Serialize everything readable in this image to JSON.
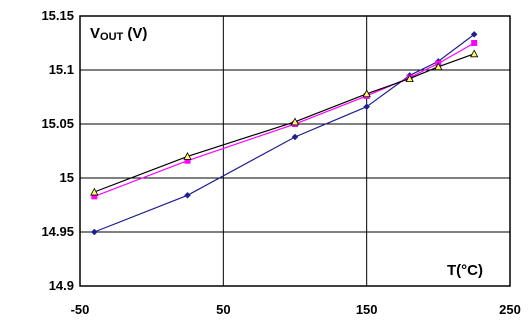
{
  "chart_data": {
    "type": "line",
    "ylabel_main": "V",
    "ylabel_sub": "OUT",
    "ylabel_unit": " (V)",
    "xlabel": "T(°C)",
    "xlim": [
      -50,
      250
    ],
    "ylim": [
      14.9,
      15.15
    ],
    "xticks": [
      -50,
      50,
      150,
      250
    ],
    "yticks": [
      14.9,
      14.95,
      15,
      15.05,
      15.1,
      15.15
    ],
    "xtick_labels": [
      "-50",
      "50",
      "150",
      "250"
    ],
    "ytick_labels": [
      "14.9",
      "14.95",
      "15",
      "15.05",
      "15.1",
      "15.15"
    ],
    "grid": true,
    "legend": "none",
    "series": [
      {
        "color": "#1f1f8f",
        "marker": "diamond",
        "x": [
          -40,
          25,
          100,
          150,
          180,
          200,
          225
        ],
        "y": [
          14.95,
          14.984,
          15.038,
          15.066,
          15.095,
          15.108,
          15.133
        ]
      },
      {
        "color": "#ff00ff",
        "marker": "square",
        "x": [
          -40,
          25,
          100,
          150,
          180,
          200,
          225
        ],
        "y": [
          14.983,
          15.016,
          15.05,
          15.076,
          15.093,
          15.106,
          15.125
        ]
      },
      {
        "color": "#000000",
        "marker": "triangle",
        "markerFill": "#ffff66",
        "x": [
          -40,
          25,
          100,
          150,
          180,
          200,
          225
        ],
        "y": [
          14.987,
          15.02,
          15.052,
          15.078,
          15.092,
          15.103,
          15.115
        ]
      }
    ]
  }
}
